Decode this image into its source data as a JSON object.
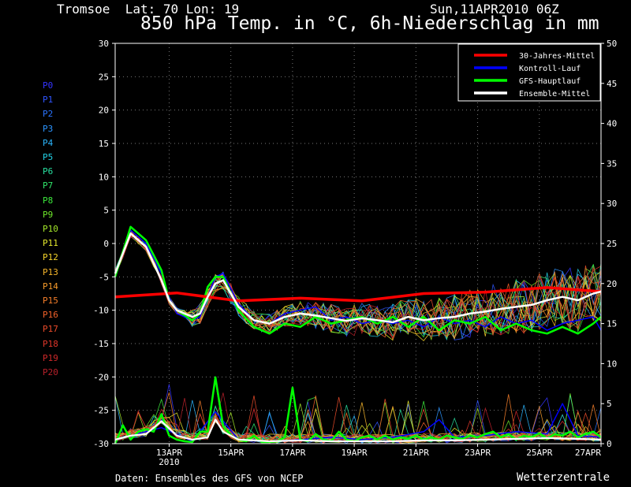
{
  "header": {
    "location": "Tromsoe  Lat: 70 Lon: 19",
    "date": "Sun,11APR2010 06Z",
    "title": "850 hPa Temp. in °C, 6h-Niederschlag in mm"
  },
  "footer": {
    "source": "Daten: Ensembles des GFS von NCEP",
    "brand": "Wetterzentrale"
  },
  "members": [
    {
      "label": "P0",
      "color": "#3434ff"
    },
    {
      "label": "P1",
      "color": "#2f55ff"
    },
    {
      "label": "P2",
      "color": "#2a74ff"
    },
    {
      "label": "P3",
      "color": "#2c95ff"
    },
    {
      "label": "P4",
      "color": "#2bb6ff"
    },
    {
      "label": "P5",
      "color": "#22d2e6"
    },
    {
      "label": "P6",
      "color": "#28e0a0"
    },
    {
      "label": "P7",
      "color": "#30e66a"
    },
    {
      "label": "P8",
      "color": "#3ce83c"
    },
    {
      "label": "P9",
      "color": "#6ee82a"
    },
    {
      "label": "P10",
      "color": "#a5e82a"
    },
    {
      "label": "P11",
      "color": "#e4e82c"
    },
    {
      "label": "P12",
      "color": "#f5d42a"
    },
    {
      "label": "P13",
      "color": "#f5b52a"
    },
    {
      "label": "P14",
      "color": "#f59a2a"
    },
    {
      "label": "P15",
      "color": "#f57e2a"
    },
    {
      "label": "P16",
      "color": "#f2622a"
    },
    {
      "label": "P17",
      "color": "#ea4b2a"
    },
    {
      "label": "P18",
      "color": "#e0362a"
    },
    {
      "label": "P19",
      "color": "#d0292a"
    },
    {
      "label": "P20",
      "color": "#b8202a"
    }
  ],
  "chart_data": {
    "type": "line",
    "x_unit": "6-hourly forecast steps from 11APR2010 06Z",
    "x_tick_labels": [
      {
        "step": 7,
        "label": "13APR",
        "sub": "2010"
      },
      {
        "step": 15,
        "label": "15APR"
      },
      {
        "step": 23,
        "label": "17APR"
      },
      {
        "step": 31,
        "label": "19APR"
      },
      {
        "step": 39,
        "label": "21APR"
      },
      {
        "step": 47,
        "label": "23APR"
      },
      {
        "step": 55,
        "label": "25APR"
      },
      {
        "step": 63,
        "label": "27APR"
      }
    ],
    "x_range": [
      0,
      63
    ],
    "y_left": {
      "range": [
        -30,
        30
      ],
      "ticks": [
        -30,
        -25,
        -20,
        -15,
        -10,
        -5,
        0,
        5,
        10,
        15,
        20,
        25,
        30
      ]
    },
    "y_right": {
      "range": [
        0,
        50
      ],
      "ticks": [
        0,
        5,
        10,
        15,
        20,
        25,
        30,
        35,
        40,
        45,
        50
      ]
    },
    "grid": true,
    "legend": {
      "placement": "top-right",
      "entries": [
        {
          "name": "30-Jahres-Mittel",
          "color": "#ff0000"
        },
        {
          "name": "Kontroll-Lauf",
          "color": "#0000ff"
        },
        {
          "name": "GFS-Hauptlauf",
          "color": "#00ff00"
        },
        {
          "name": "Ensemble-Mittel",
          "color": "#ffffff"
        }
      ]
    },
    "temperature": {
      "climate_mean": {
        "x": [
          0,
          8,
          16,
          24,
          32,
          40,
          48,
          56,
          63
        ],
        "y": [
          -8,
          -7.4,
          -8.6,
          -8.2,
          -8.6,
          -7.5,
          -7.3,
          -6.6,
          -7.2
        ]
      },
      "ensemble_mean": {
        "x": [
          0,
          2,
          4,
          6,
          7,
          8,
          10,
          11,
          12,
          13,
          14,
          16,
          18,
          20,
          22,
          24,
          26,
          28,
          30,
          32,
          34,
          36,
          38,
          40,
          42,
          44,
          46,
          48,
          50,
          52,
          54,
          56,
          58,
          60,
          62,
          63
        ],
        "y": [
          -4.5,
          1.5,
          -0.5,
          -5.5,
          -8.5,
          -10,
          -11,
          -10.5,
          -8,
          -6,
          -5.5,
          -9.5,
          -11.5,
          -12,
          -11,
          -10.5,
          -10.8,
          -11.2,
          -11.6,
          -11.2,
          -11.5,
          -11.8,
          -11,
          -11.5,
          -11.2,
          -11,
          -10.5,
          -10.2,
          -9.8,
          -9.5,
          -9.2,
          -8.5,
          -8,
          -8.5,
          -7.5,
          -7.2
        ]
      },
      "gfs_main": {
        "x": [
          0,
          2,
          4,
          6,
          7,
          8,
          10,
          11,
          12,
          13,
          14,
          16,
          18,
          20,
          22,
          24,
          26,
          28,
          30,
          32,
          34,
          36,
          38,
          40,
          42,
          44,
          46,
          48,
          50,
          52,
          54,
          56,
          58,
          60,
          62,
          63
        ],
        "y": [
          -5,
          2.5,
          0.5,
          -4,
          -8.5,
          -10,
          -11.5,
          -10.5,
          -6.5,
          -5,
          -5,
          -10,
          -12.5,
          -13.5,
          -12,
          -12.5,
          -11,
          -12,
          -11.5,
          -11,
          -12,
          -11,
          -12.5,
          -11,
          -13,
          -11.5,
          -12,
          -11,
          -13,
          -12,
          -13,
          -13.5,
          -12.5,
          -13.5,
          -12,
          -11
        ]
      },
      "control": {
        "x": [
          0,
          2,
          4,
          6,
          7,
          8,
          10,
          11,
          12,
          13,
          14,
          16,
          18,
          20,
          22,
          24,
          26,
          28,
          30,
          32,
          34,
          36,
          38,
          40,
          42,
          44,
          46,
          48,
          50,
          52,
          54,
          56,
          58,
          60,
          62,
          63
        ],
        "y": [
          -5,
          2,
          0,
          -4.5,
          -8,
          -10.5,
          -11.5,
          -11,
          -8,
          -5,
          -4.5,
          -9,
          -11.5,
          -12,
          -10.5,
          -10,
          -9.5,
          -11.5,
          -11,
          -12,
          -11.5,
          -12,
          -11.5,
          -12.5,
          -11,
          -12,
          -11.5,
          -12.5,
          -11,
          -12,
          -11.5,
          -13,
          -12,
          -11.5,
          -11,
          -13
        ]
      }
    },
    "precipitation": {
      "gfs_main": {
        "x": [
          0,
          1,
          2,
          3,
          4,
          5,
          6,
          7,
          8,
          9,
          10,
          11,
          12,
          13,
          14,
          15,
          16,
          17,
          18,
          19,
          20,
          21,
          22,
          23,
          24,
          25,
          26,
          27,
          28,
          29,
          30,
          31,
          32,
          33,
          34,
          35,
          36,
          37,
          38,
          39,
          40,
          41,
          42,
          43,
          44,
          45,
          46,
          47,
          48,
          49,
          50,
          51,
          52,
          53,
          54,
          55,
          56,
          57,
          58,
          59,
          60,
          61,
          62,
          63
        ],
        "y": [
          0,
          2.3,
          0.5,
          1.5,
          1.8,
          1.5,
          3.7,
          1,
          0.5,
          0.3,
          0.2,
          1.5,
          1.5,
          8.3,
          2.2,
          1,
          0.5,
          0.3,
          1,
          0.2,
          0.2,
          0.3,
          0.8,
          7,
          0.5,
          0.3,
          1.2,
          0.5,
          0.3,
          1.5,
          0.5,
          0.3,
          0.8,
          1,
          0.5,
          1,
          0.5,
          0.8,
          0.6,
          1,
          0.5,
          0.8,
          0.5,
          1,
          0.8,
          0.6,
          1,
          0.8,
          1.2,
          1.5,
          0.8,
          1.2,
          0.5,
          1,
          0.8,
          1.3,
          0.6,
          1.2,
          1,
          1.5,
          0.8,
          1.2,
          1.5,
          0.8
        ]
      },
      "ensemble_mean": {
        "x": [
          0,
          2,
          4,
          6,
          8,
          10,
          12,
          13,
          14,
          16,
          18,
          20,
          24,
          28,
          32,
          36,
          40,
          44,
          48,
          52,
          56,
          60,
          63
        ],
        "y": [
          0.5,
          1,
          1.2,
          2.8,
          1,
          0.5,
          0.8,
          3,
          1.5,
          0.5,
          0.4,
          0.3,
          0.4,
          0.3,
          0.3,
          0.3,
          0.4,
          0.4,
          0.5,
          0.6,
          0.7,
          0.6,
          0.5
        ]
      },
      "control": {
        "x": [
          0,
          6,
          10,
          13,
          16,
          20,
          24,
          28,
          32,
          36,
          40,
          42,
          44,
          48,
          52,
          56,
          58,
          60,
          63
        ],
        "y": [
          0.5,
          2,
          0.3,
          4,
          0.5,
          0.3,
          0.5,
          0.8,
          0.5,
          0.8,
          1.5,
          3,
          0.8,
          1,
          1.5,
          1.2,
          5,
          1,
          0.8
        ]
      }
    }
  }
}
